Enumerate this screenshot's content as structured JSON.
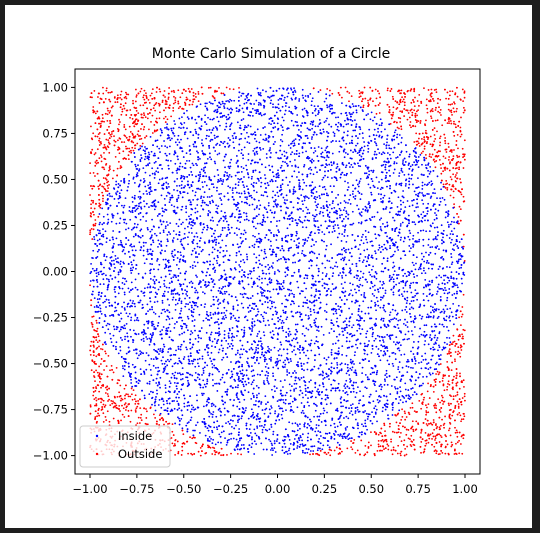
{
  "chart_data": {
    "type": "scatter",
    "title": "Monte Carlo Simulation of a Circle",
    "xlabel": "",
    "ylabel": "",
    "xlim": [
      -1.08,
      1.08
    ],
    "ylim": [
      -1.1,
      1.1
    ],
    "xticks": [
      -1.0,
      -0.75,
      -0.5,
      -0.25,
      0.0,
      0.25,
      0.5,
      0.75,
      1.0
    ],
    "xtick_labels": [
      "−1.00",
      "−0.75",
      "−0.50",
      "−0.25",
      "0.00",
      "0.25",
      "0.50",
      "0.75",
      "1.00"
    ],
    "yticks": [
      -1.0,
      -0.75,
      -0.5,
      -0.25,
      0.0,
      0.25,
      0.5,
      0.75,
      1.0
    ],
    "ytick_labels": [
      "−1.00",
      "−0.75",
      "−0.50",
      "−0.25",
      "0.00",
      "0.25",
      "0.50",
      "0.75",
      "1.00"
    ],
    "grid": false,
    "legend_position": "lower-left",
    "circle_radius": 1.0,
    "sample_domain": [
      -1.0,
      1.0
    ],
    "series": [
      {
        "name": "Inside",
        "color": "#0000ff",
        "rule": "x^2 + y^2 <= 1"
      },
      {
        "name": "Outside",
        "color": "#ff0000",
        "rule": "x^2 + y^2 > 1"
      }
    ]
  }
}
